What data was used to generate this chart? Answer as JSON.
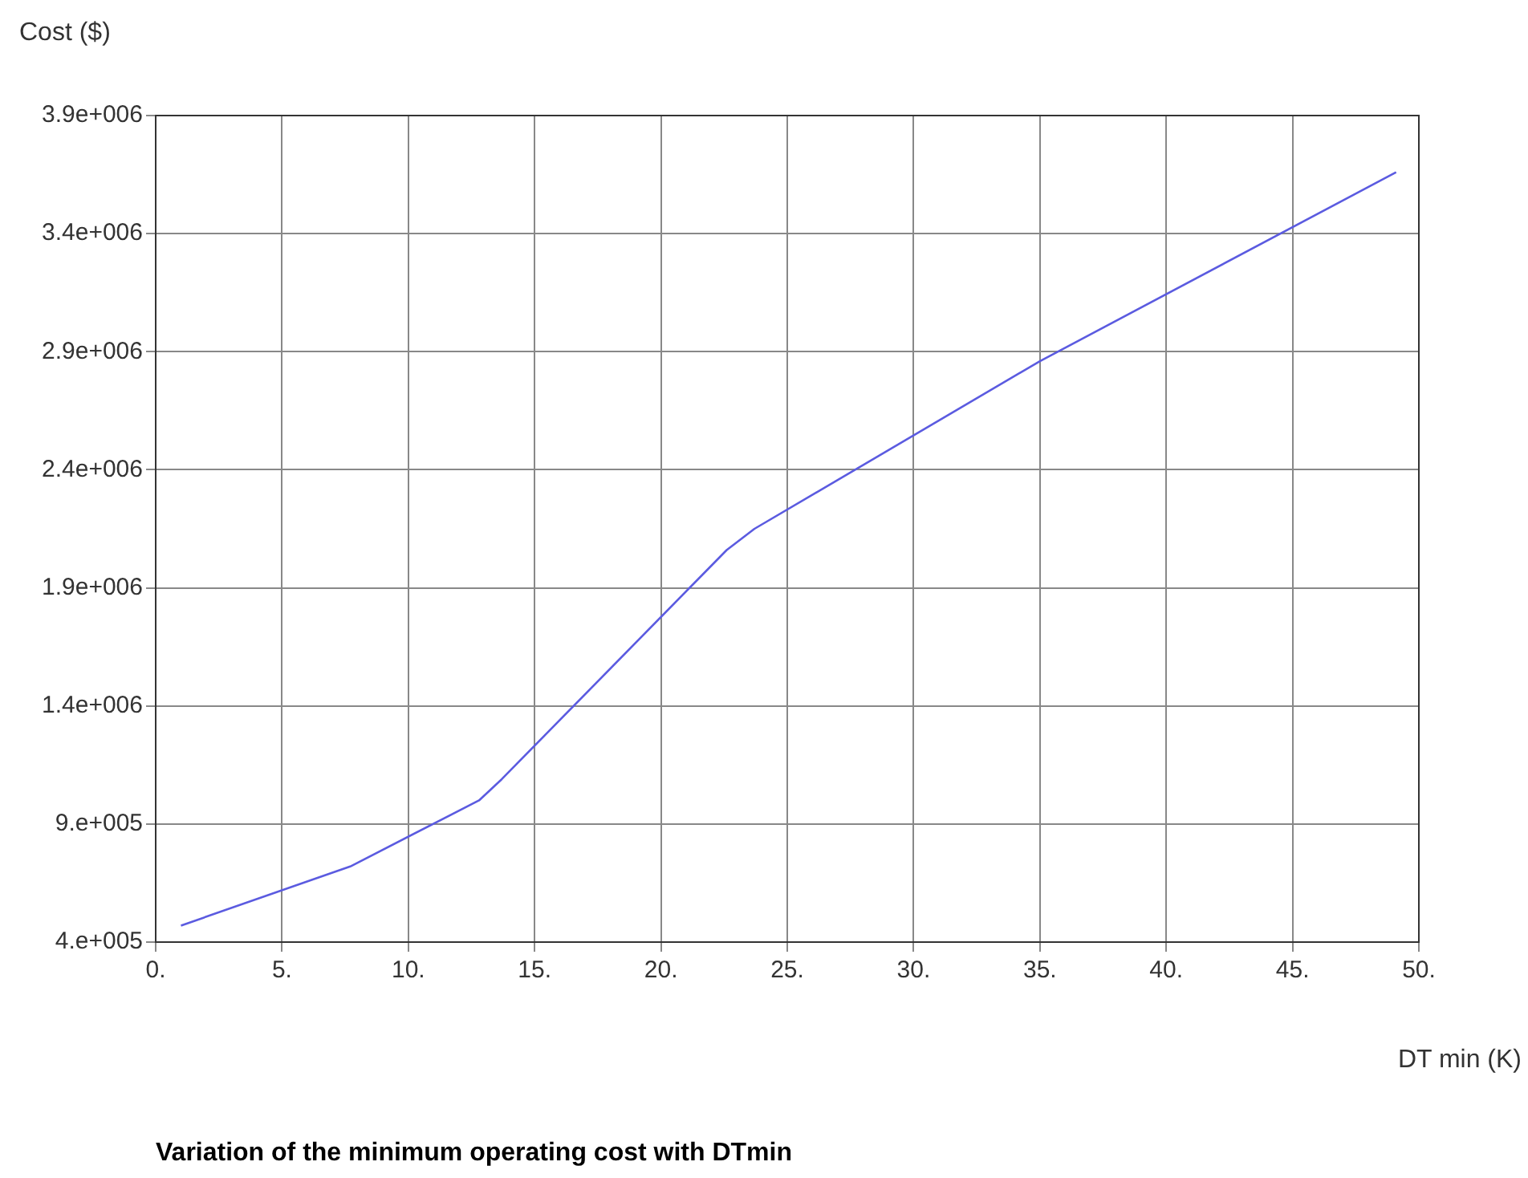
{
  "chart_data": {
    "type": "line",
    "title": "Variation of the minimum operating cost with DTmin",
    "xlabel": "DT min (K)",
    "ylabel": "Cost ($)",
    "x": [
      1.0,
      7.7,
      12.8,
      13.7,
      22.6,
      23.7,
      35.0,
      49.1
    ],
    "series": [
      {
        "color": "#5b5be0",
        "values": [
          470000,
          720000,
          1000000,
          1090000,
          2060000,
          2150000,
          2860000,
          3660000
        ]
      }
    ],
    "xlim": [
      0,
      50
    ],
    "xticks": [
      {
        "value": 0,
        "label": "0."
      },
      {
        "value": 5,
        "label": "5."
      },
      {
        "value": 10,
        "label": "10."
      },
      {
        "value": 15,
        "label": "15."
      },
      {
        "value": 20,
        "label": "20."
      },
      {
        "value": 25,
        "label": "25."
      },
      {
        "value": 30,
        "label": "30."
      },
      {
        "value": 35,
        "label": "35."
      },
      {
        "value": 40,
        "label": "40."
      },
      {
        "value": 45,
        "label": "45."
      },
      {
        "value": 50,
        "label": "50."
      }
    ],
    "ylim": [
      400000,
      3900000
    ],
    "yticks": [
      {
        "value": 400000,
        "label": "4.e+005"
      },
      {
        "value": 900000,
        "label": "9.e+005"
      },
      {
        "value": 1400000,
        "label": "1.4e+006"
      },
      {
        "value": 1900000,
        "label": "1.9e+006"
      },
      {
        "value": 2400000,
        "label": "2.4e+006"
      },
      {
        "value": 2900000,
        "label": "2.9e+006"
      },
      {
        "value": 3400000,
        "label": "3.4e+006"
      },
      {
        "value": 3900000,
        "label": "3.9e+006"
      }
    ],
    "grid": true,
    "legend": false,
    "marker": "none",
    "line_style": "solid"
  }
}
